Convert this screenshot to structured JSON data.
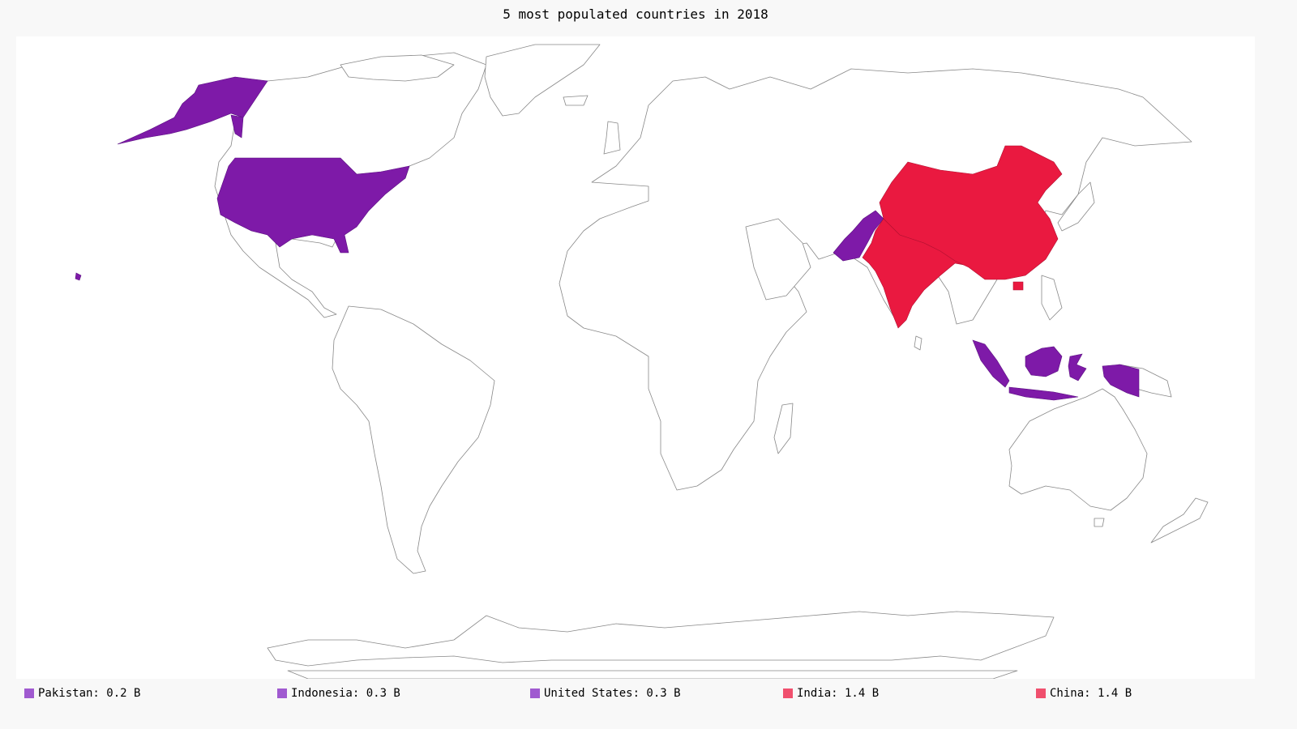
{
  "title": "5 most populated countries in 2018",
  "colors": {
    "background": "#f8f8f8",
    "map_background": "#ffffff",
    "land_stroke": "#888888",
    "purple": "#7e1aa8",
    "red": "#ea1940",
    "legend_purple": "#a05ad0",
    "legend_red": "#f0506e"
  },
  "legend": [
    {
      "country": "Pakistan",
      "label": "Pakistan: 0.2 B",
      "value": 0.2,
      "unit": "B",
      "color": "#a05ad0"
    },
    {
      "country": "Indonesia",
      "label": "Indonesia: 0.3 B",
      "value": 0.3,
      "unit": "B",
      "color": "#a05ad0"
    },
    {
      "country": "United States",
      "label": "United States: 0.3 B",
      "value": 0.3,
      "unit": "B",
      "color": "#a05ad0"
    },
    {
      "country": "India",
      "label": "India: 1.4 B",
      "value": 1.4,
      "unit": "B",
      "color": "#f0506e"
    },
    {
      "country": "China",
      "label": "China: 1.4 B",
      "value": 1.4,
      "unit": "B",
      "color": "#f0506e"
    }
  ],
  "highlighted_countries": [
    {
      "name": "United States",
      "color": "#7e1aa8"
    },
    {
      "name": "Pakistan",
      "color": "#7e1aa8"
    },
    {
      "name": "Indonesia",
      "color": "#7e1aa8"
    },
    {
      "name": "India",
      "color": "#ea1940"
    },
    {
      "name": "China",
      "color": "#ea1940"
    }
  ]
}
